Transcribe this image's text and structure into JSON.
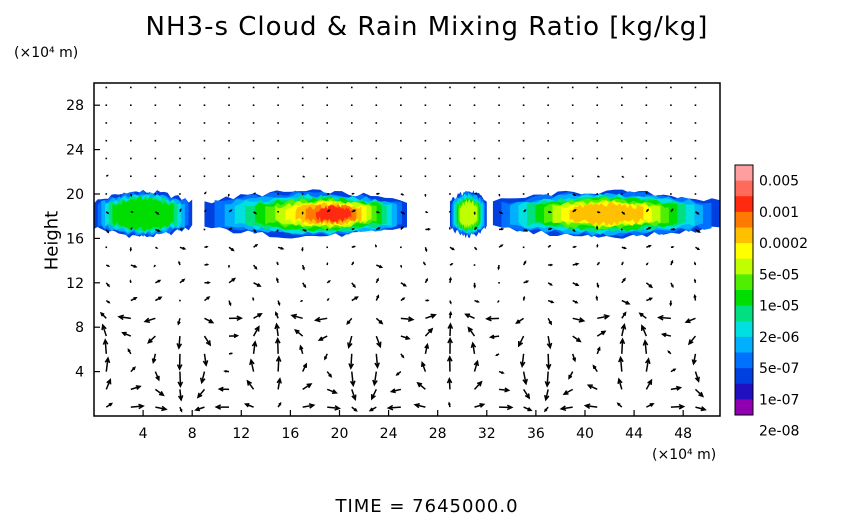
{
  "chart_data": {
    "type": "heatmap",
    "title": "NH3-s Cloud & Rain Mixing Ratio [kg/kg]",
    "ylabel": "Height",
    "x_unit": "(×10⁴ m)",
    "y_unit": "(×10⁴ m)",
    "xlim": [
      0,
      51
    ],
    "ylim": [
      0,
      30
    ],
    "x_ticks": [
      "4",
      "8",
      "12",
      "16",
      "20",
      "24",
      "28",
      "32",
      "36",
      "40",
      "44",
      "48"
    ],
    "y_ticks": [
      "4",
      "8",
      "12",
      "16",
      "20",
      "24",
      "28"
    ],
    "colorbar": {
      "labels": [
        "0.005",
        "0.001",
        "0.0002",
        "5e-05",
        "1e-05",
        "2e-06",
        "5e-07",
        "1e-07",
        "2e-08"
      ],
      "colors": [
        "#ff9e9e",
        "#ff6a5a",
        "#ff2a10",
        "#ff7a00",
        "#ffc000",
        "#ffff00",
        "#c0ff00",
        "#50ee00",
        "#00dd00",
        "#00e080",
        "#00e0e0",
        "#00b0ff",
        "#0070ff",
        "#0040e0",
        "#2010c0",
        "#9000b0"
      ]
    },
    "cloud_layer": {
      "altitude_range": [
        16,
        20
      ],
      "segments": [
        {
          "x_range": [
            0,
            8
          ],
          "peak": "1e-05"
        },
        {
          "x_range": [
            9,
            25.5
          ],
          "peak": "0.001"
        },
        {
          "x_range": [
            29,
            32
          ],
          "peak": "5e-05"
        },
        {
          "x_range": [
            32.5,
            51
          ],
          "peak": "0.0002"
        }
      ]
    },
    "vectors": "wind field arrows, strongest in circulation cells below 10 (×10⁴ m)"
  },
  "footer": {
    "time_label": "TIME  =  7645000.0"
  }
}
